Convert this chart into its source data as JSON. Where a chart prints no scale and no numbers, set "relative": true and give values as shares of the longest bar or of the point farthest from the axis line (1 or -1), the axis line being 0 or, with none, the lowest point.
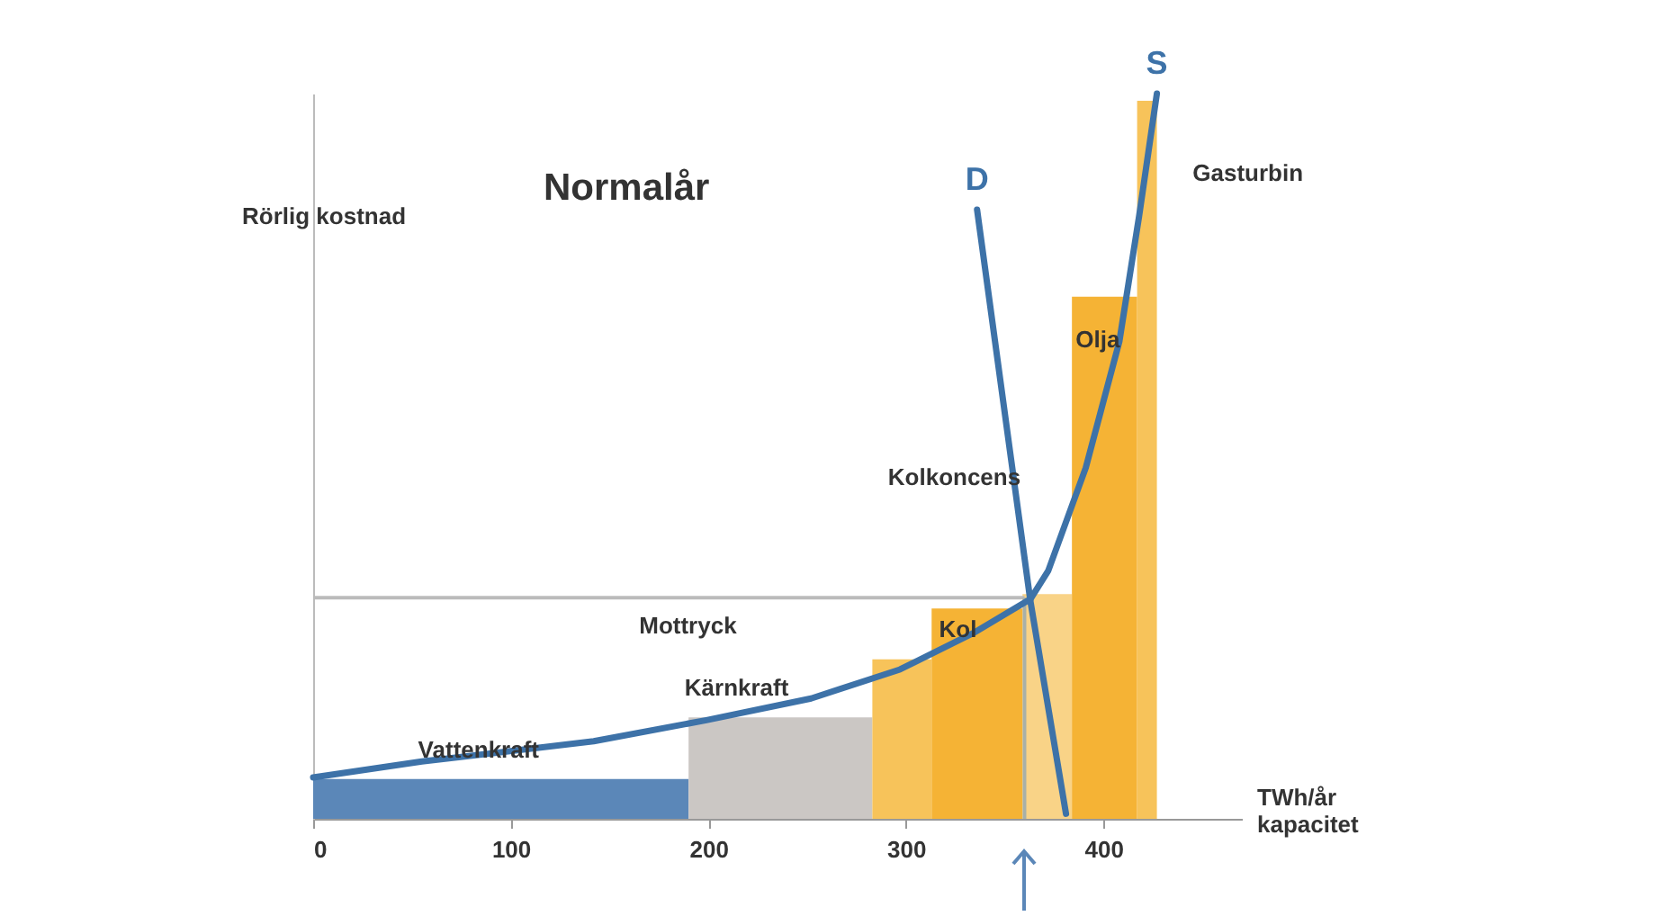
{
  "chart_data": {
    "type": "histogram",
    "title": "Normalår",
    "ylabel": "Rörlig kostnad",
    "xlabel": "TWh/år\nkapacitet",
    "relative": true,
    "bins": [
      0,
      190,
      283,
      313,
      359,
      384,
      417,
      427
    ],
    "values": [
      0.055,
      0.14,
      0.22,
      0.29,
      0.31,
      0.72,
      0.99
    ],
    "colors": [
      "#5b87b8",
      "#cbc7c4",
      "#f7c35a",
      "#f5b335",
      "#f9d387",
      "#f5b335",
      "#f7c35a"
    ],
    "series": [
      {
        "type": "line",
        "name": "S",
        "color": "#3d72a8",
        "x": [
          0,
          55,
          142,
          199,
          252,
          297,
          334,
          363,
          372,
          391,
          408,
          418,
          427
        ],
        "values": [
          0.057,
          0.079,
          0.107,
          0.136,
          0.166,
          0.206,
          0.256,
          0.303,
          0.342,
          0.484,
          0.658,
          0.831,
          1
        ]
      },
      {
        "type": "line",
        "name": "D",
        "color": "#3d72a8",
        "x": [
          336,
          363,
          381
        ],
        "values": [
          0.84,
          0.3,
          0.007
        ]
      }
    ],
    "xlim": [
      0,
      470
    ],
    "xticks": [
      0,
      100,
      200,
      300,
      400
    ],
    "grid": false,
    "ref_lines": [
      {
        "axis": "y",
        "value": 0.305,
        "color": "#bbbbbb"
      },
      {
        "axis": "x",
        "value": 360,
        "color": "#a8b0a8"
      }
    ],
    "annotations": [
      "Vattenkraft",
      "Kärnkraft",
      "Mottryck",
      "Kol",
      "Kolkoncens",
      "Olja",
      "Gasturbin"
    ]
  }
}
